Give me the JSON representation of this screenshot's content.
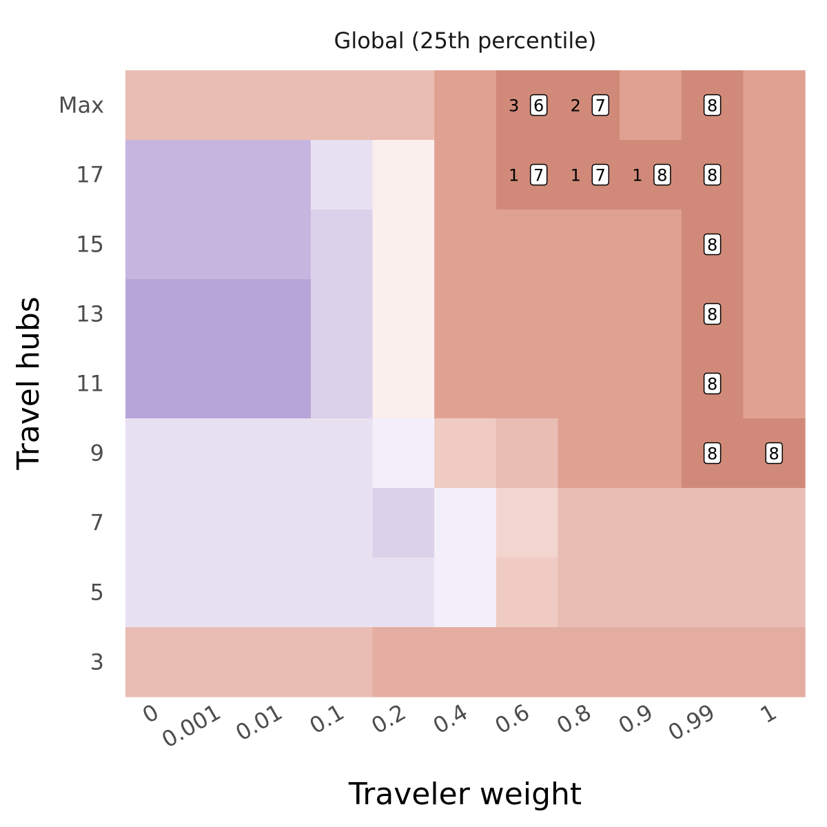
{
  "chart_data": {
    "type": "heatmap",
    "title": "Global (25th percentile)",
    "xlabel": "Traveler weight",
    "ylabel": "Travel hubs",
    "x_categories": [
      "0",
      "0.001",
      "0.01",
      "0.1",
      "0.2",
      "0.4",
      "0.6",
      "0.8",
      "0.9",
      "0.99",
      "1"
    ],
    "y_categories": [
      "Max",
      "17",
      "15",
      "13",
      "11",
      "9",
      "7",
      "5",
      "3"
    ],
    "palette": {
      "P3": "#b7a5d9",
      "P2": "#c5b5df",
      "P1": "#dcd1ea",
      "P0": "#e8e1f1",
      "W1": "#f3effa",
      "W2": "#faefed",
      "R0": "#f3d5cf",
      "R1": "#efcbc3",
      "R2": "#e9bdb3",
      "R3": "#e3aea1",
      "R4": "#e0a193",
      "R5": "#d18a79"
    },
    "cells": [
      [
        "R2",
        "R2",
        "R2",
        "R2",
        "R2",
        "R4",
        "R5",
        "R5",
        "R4",
        "R5",
        "R4"
      ],
      [
        "P2",
        "P2",
        "P2",
        "P0",
        "W2",
        "R4",
        "R5",
        "R5",
        "R5",
        "R5",
        "R4"
      ],
      [
        "P2",
        "P2",
        "P2",
        "P1",
        "W2",
        "R4",
        "R4",
        "R4",
        "R4",
        "R5",
        "R4"
      ],
      [
        "P3",
        "P3",
        "P3",
        "P1",
        "W2",
        "R4",
        "R4",
        "R4",
        "R4",
        "R5",
        "R4"
      ],
      [
        "P3",
        "P3",
        "P3",
        "P1",
        "W2",
        "R4",
        "R4",
        "R4",
        "R4",
        "R5",
        "R4"
      ],
      [
        "P0",
        "P0",
        "P0",
        "P0",
        "W1",
        "R1",
        "R2",
        "R4",
        "R4",
        "R5",
        "R5"
      ],
      [
        "P0",
        "P0",
        "P0",
        "P0",
        "P1",
        "W1",
        "R0",
        "R2",
        "R2",
        "R2",
        "R2"
      ],
      [
        "P0",
        "P0",
        "P0",
        "P0",
        "P0",
        "W1",
        "R1",
        "R2",
        "R2",
        "R2",
        "R2"
      ],
      [
        "R2",
        "R2",
        "R2",
        "R2",
        "R3",
        "R3",
        "R3",
        "R3",
        "R3",
        "R3",
        "R3"
      ]
    ],
    "annotations": [
      {
        "x": "0.6",
        "y": "Max",
        "count": "3",
        "badge": "6"
      },
      {
        "x": "0.8",
        "y": "Max",
        "count": "2",
        "badge": "7"
      },
      {
        "x": "0.99",
        "y": "Max",
        "count": "",
        "badge": "8"
      },
      {
        "x": "0.6",
        "y": "17",
        "count": "1",
        "badge": "7"
      },
      {
        "x": "0.8",
        "y": "17",
        "count": "1",
        "badge": "7"
      },
      {
        "x": "0.9",
        "y": "17",
        "count": "1",
        "badge": "8"
      },
      {
        "x": "0.99",
        "y": "17",
        "count": "",
        "badge": "8"
      },
      {
        "x": "0.99",
        "y": "15",
        "count": "",
        "badge": "8"
      },
      {
        "x": "0.99",
        "y": "13",
        "count": "",
        "badge": "8"
      },
      {
        "x": "0.99",
        "y": "11",
        "count": "",
        "badge": "8"
      },
      {
        "x": "0.99",
        "y": "9",
        "count": "",
        "badge": "8"
      },
      {
        "x": "1",
        "y": "9",
        "count": "",
        "badge": "8"
      }
    ],
    "grid": false,
    "legend": "none"
  }
}
